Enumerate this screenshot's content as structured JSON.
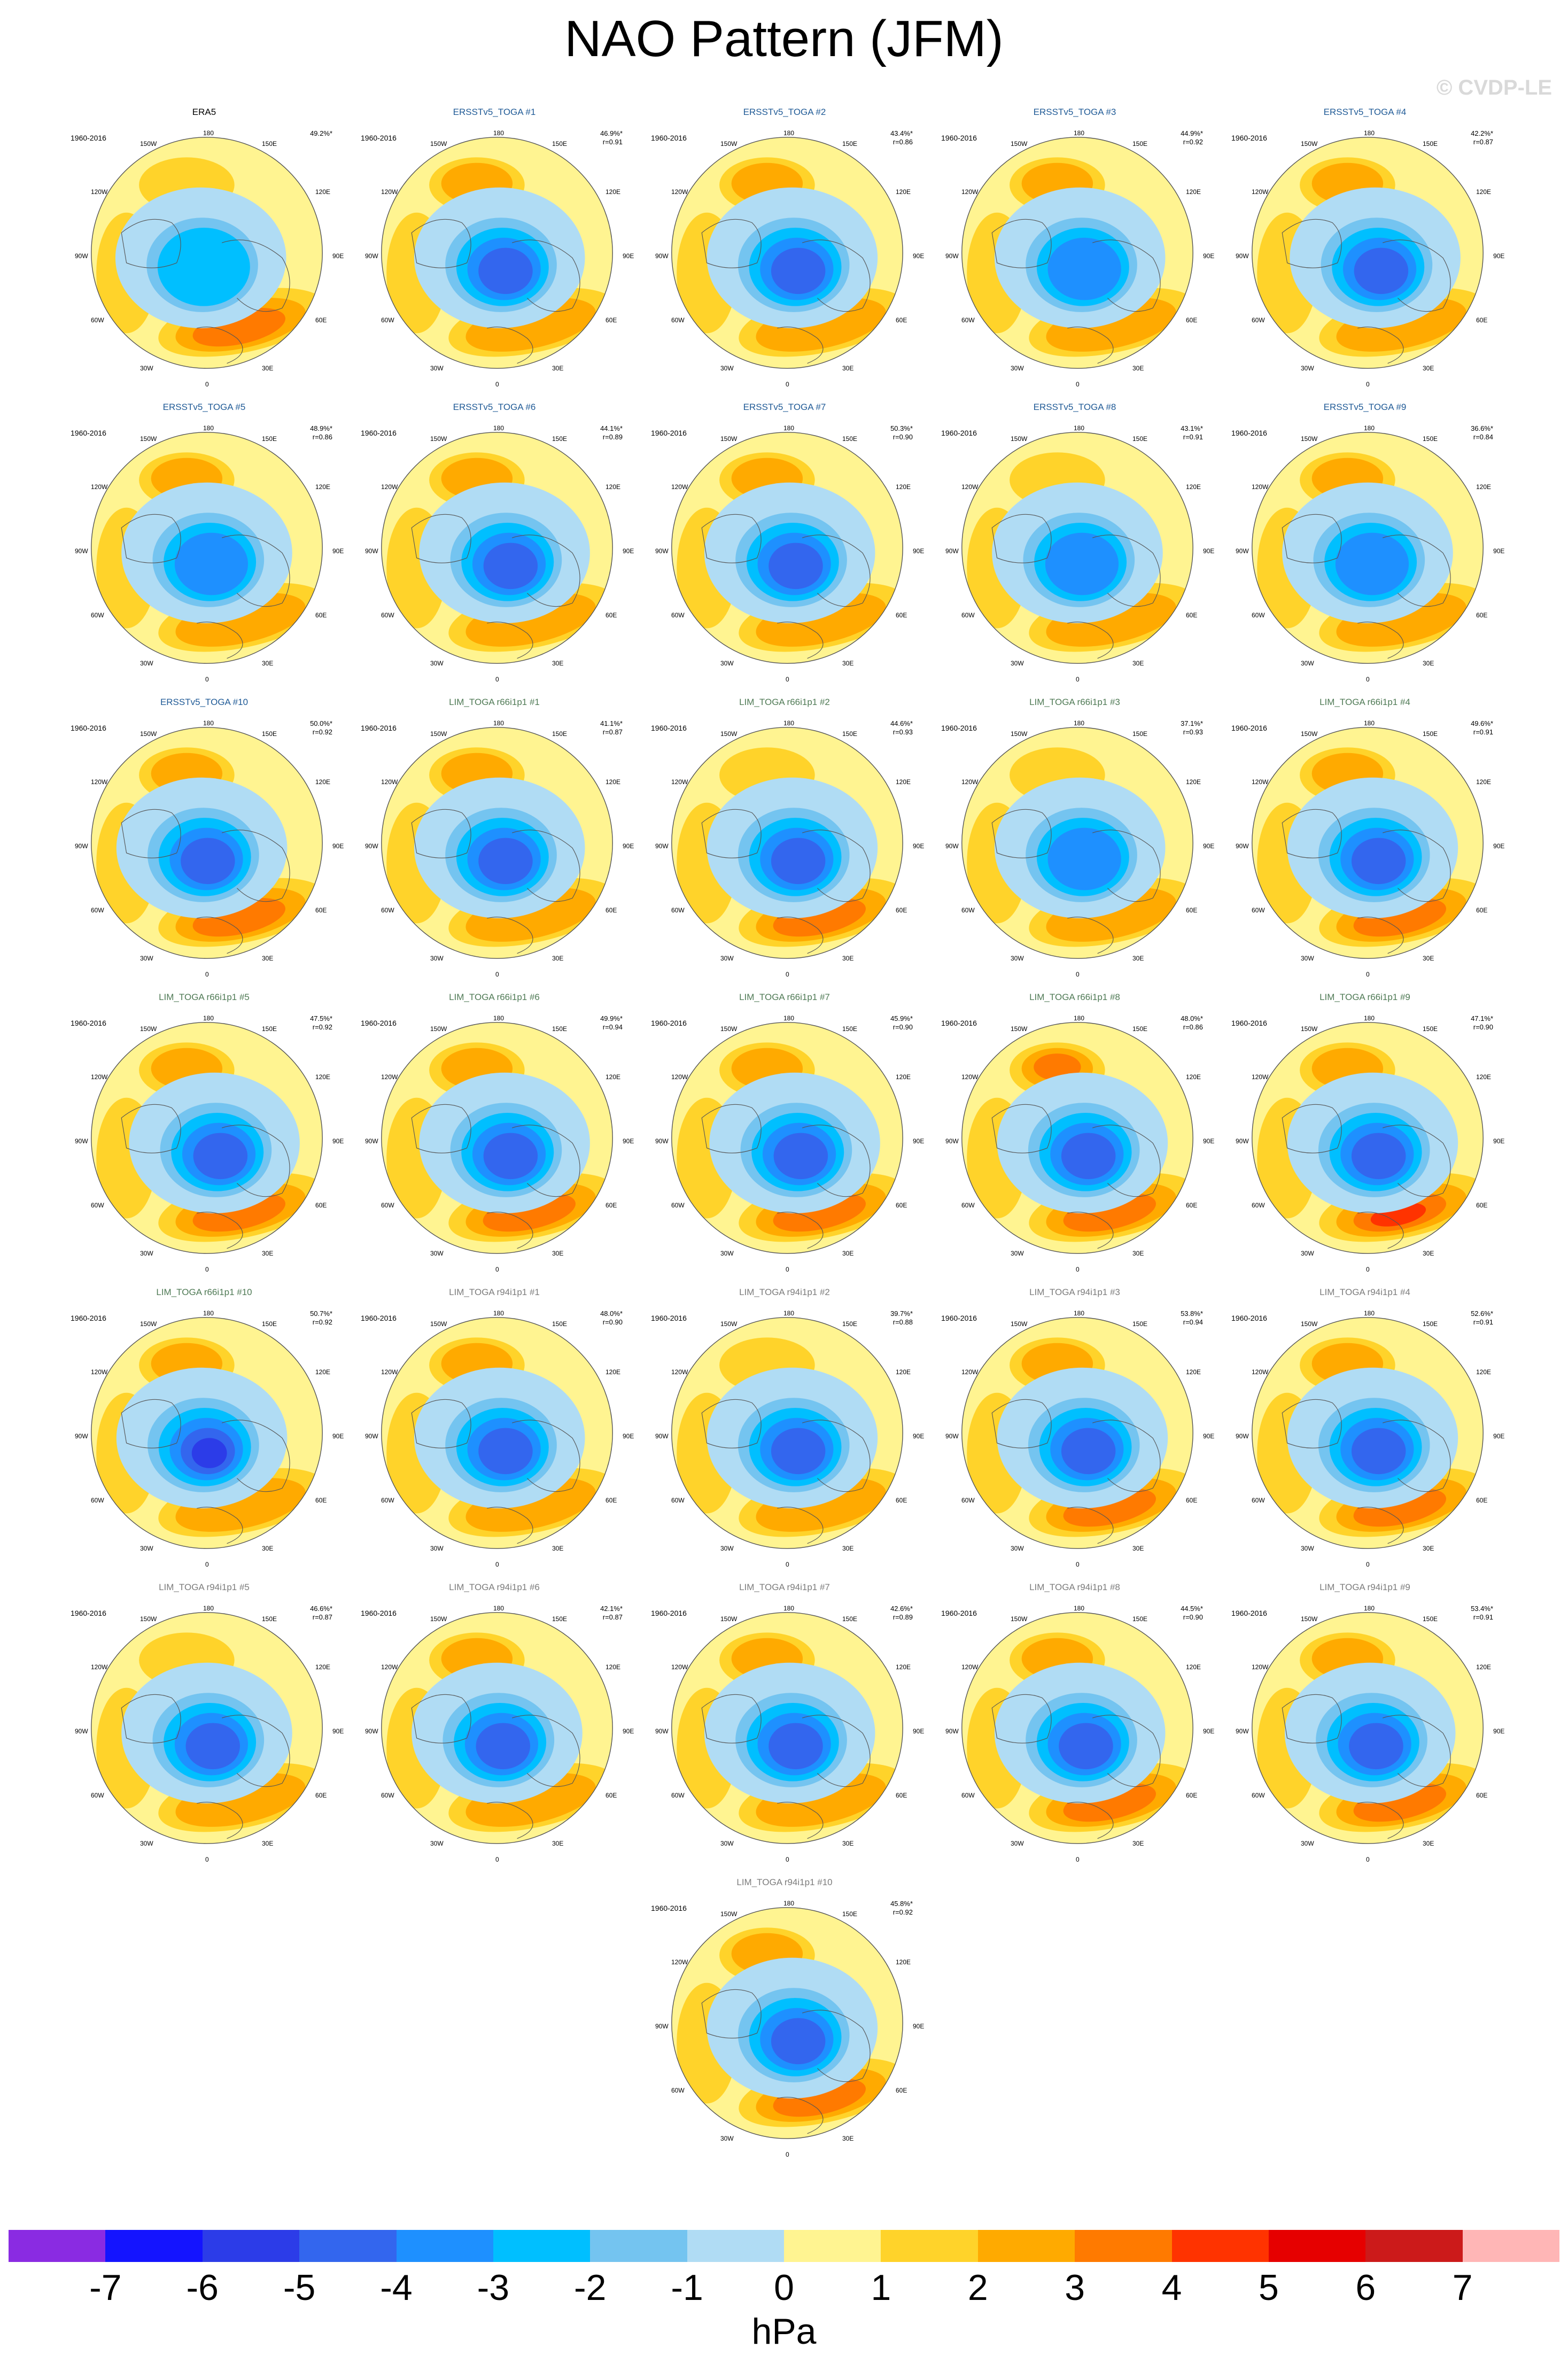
{
  "title": "NAO Pattern (JFM)",
  "watermark": "© CVDP-LE",
  "panel_labels": {
    "period": "1960-2016",
    "lon_180": "180",
    "lon_150W": "150W",
    "lon_150E": "150E",
    "lon_120W": "120W",
    "lon_120E": "120E",
    "lon_90W": "90W",
    "lon_90E": "90E",
    "lon_60W": "60W",
    "lon_60E": "60E",
    "lon_30W": "30W",
    "lon_30E": "30E",
    "lon_0": "0"
  },
  "panels": [
    {
      "title": "ERA5",
      "group": "era",
      "pct": "49.2%*",
      "r": "",
      "ghigh": 0.55,
      "npac": 0.25,
      "natl": 0.7,
      "shift": -12
    },
    {
      "title": "ERSSTv5_TOGA #1",
      "group": "ersst",
      "pct": "46.9%*",
      "r": "r=0.91",
      "ghigh": 0.75,
      "npac": 0.6,
      "natl": 0.6,
      "shift": 5
    },
    {
      "title": "ERSSTv5_TOGA #2",
      "group": "ersst",
      "pct": "43.4%*",
      "r": "r=0.86",
      "ghigh": 0.8,
      "npac": 0.8,
      "natl": 0.6,
      "shift": 10
    },
    {
      "title": "ERSSTv5_TOGA #3",
      "group": "ersst",
      "pct": "44.9%*",
      "r": "r=0.92",
      "ghigh": 0.7,
      "npac": 0.65,
      "natl": 0.6,
      "shift": 5
    },
    {
      "title": "ERSSTv5_TOGA #4",
      "group": "ersst",
      "pct": "42.2%*",
      "r": "r=0.87",
      "ghigh": 0.85,
      "npac": 0.6,
      "natl": 0.6,
      "shift": 15
    },
    {
      "title": "ERSSTv5_TOGA #5",
      "group": "ersst",
      "pct": "48.9%*",
      "r": "r=0.86",
      "ghigh": 0.7,
      "npac": 0.8,
      "natl": 0.55,
      "shift": 0
    },
    {
      "title": "ERSSTv5_TOGA #6",
      "group": "ersst",
      "pct": "44.1%*",
      "r": "r=0.89",
      "ghigh": 0.8,
      "npac": 0.5,
      "natl": 0.6,
      "shift": 15
    },
    {
      "title": "ERSSTv5_TOGA #7",
      "group": "ersst",
      "pct": "50.3%*",
      "r": "r=0.90",
      "ghigh": 0.8,
      "npac": 0.7,
      "natl": 0.6,
      "shift": 5
    },
    {
      "title": "ERSSTv5_TOGA #8",
      "group": "ersst",
      "pct": "43.1%*",
      "r": "r=0.91",
      "ghigh": 0.7,
      "npac": 0.35,
      "natl": 0.6,
      "shift": 0
    },
    {
      "title": "ERSSTv5_TOGA #9",
      "group": "ersst",
      "pct": "36.6%*",
      "r": "r=0.84",
      "ghigh": 0.7,
      "npac": 0.6,
      "natl": 0.6,
      "shift": 0
    },
    {
      "title": "ERSSTv5_TOGA #10",
      "group": "ersst",
      "pct": "50.0%*",
      "r": "r=0.92",
      "ghigh": 0.9,
      "npac": 0.75,
      "natl": 0.7,
      "shift": -10
    },
    {
      "title": "LIM_TOGA r66i1p1 #1",
      "group": "lim66",
      "pct": "41.1%*",
      "r": "r=0.87",
      "ghigh": 0.8,
      "npac": 0.6,
      "natl": 0.6,
      "shift": 5
    },
    {
      "title": "LIM_TOGA r66i1p1 #2",
      "group": "lim66",
      "pct": "44.6%*",
      "r": "r=0.93",
      "ghigh": 0.75,
      "npac": 0.4,
      "natl": 0.7,
      "shift": 10
    },
    {
      "title": "LIM_TOGA r66i1p1 #3",
      "group": "lim66",
      "pct": "37.1%*",
      "r": "r=0.93",
      "ghigh": 0.7,
      "npac": 0.3,
      "natl": 0.6,
      "shift": 5
    },
    {
      "title": "LIM_TOGA r66i1p1 #4",
      "group": "lim66",
      "pct": "49.6%*",
      "r": "r=0.91",
      "ghigh": 0.85,
      "npac": 0.55,
      "natl": 0.7,
      "shift": 10
    },
    {
      "title": "LIM_TOGA r66i1p1 #5",
      "group": "lim66",
      "pct": "47.5%*",
      "r": "r=0.92",
      "ghigh": 0.8,
      "npac": 0.55,
      "natl": 0.65,
      "shift": 15
    },
    {
      "title": "LIM_TOGA r66i1p1 #6",
      "group": "lim66",
      "pct": "49.9%*",
      "r": "r=0.94",
      "ghigh": 0.8,
      "npac": 0.65,
      "natl": 0.8,
      "shift": 15
    },
    {
      "title": "LIM_TOGA r66i1p1 #7",
      "group": "lim66",
      "pct": "45.9%*",
      "r": "r=0.90",
      "ghigh": 0.85,
      "npac": 0.7,
      "natl": 0.7,
      "shift": 15
    },
    {
      "title": "LIM_TOGA r66i1p1 #8",
      "group": "lim66",
      "pct": "48.0%*",
      "r": "r=0.86",
      "ghigh": 0.75,
      "npac": 0.85,
      "natl": 0.65,
      "shift": 10
    },
    {
      "title": "LIM_TOGA r66i1p1 #9",
      "group": "lim66",
      "pct": "47.1%*",
      "r": "r=0.90",
      "ghigh": 0.8,
      "npac": 0.8,
      "natl": 0.9,
      "shift": 10
    },
    {
      "title": "LIM_TOGA r66i1p1 #10",
      "group": "lim66",
      "pct": "50.7%*",
      "r": "r=0.92",
      "ghigh": 0.95,
      "npac": 0.65,
      "natl": 0.6,
      "shift": -10
    },
    {
      "title": "LIM_TOGA r94i1p1 #1",
      "group": "lim94",
      "pct": "48.0%*",
      "r": "r=0.90",
      "ghigh": 0.8,
      "npac": 0.65,
      "natl": 0.6,
      "shift": 5
    },
    {
      "title": "LIM_TOGA r94i1p1 #2",
      "group": "lim94",
      "pct": "39.7%*",
      "r": "r=0.88",
      "ghigh": 0.8,
      "npac": 0.45,
      "natl": 0.55,
      "shift": 10
    },
    {
      "title": "LIM_TOGA r94i1p1 #3",
      "group": "lim94",
      "pct": "53.8%*",
      "r": "r=0.94",
      "ghigh": 0.8,
      "npac": 0.55,
      "natl": 0.7,
      "shift": 10
    },
    {
      "title": "LIM_TOGA r94i1p1 #4",
      "group": "lim94",
      "pct": "52.6%*",
      "r": "r=0.91",
      "ghigh": 0.9,
      "npac": 0.75,
      "natl": 0.75,
      "shift": 10
    },
    {
      "title": "LIM_TOGA r94i1p1 #5",
      "group": "lim94",
      "pct": "46.6%*",
      "r": "r=0.87",
      "ghigh": 0.8,
      "npac": 0.4,
      "natl": 0.6,
      "shift": 0
    },
    {
      "title": "LIM_TOGA r94i1p1 #6",
      "group": "lim94",
      "pct": "42.1%*",
      "r": "r=0.87",
      "ghigh": 0.75,
      "npac": 0.5,
      "natl": 0.6,
      "shift": 0
    },
    {
      "title": "LIM_TOGA r94i1p1 #7",
      "group": "lim94",
      "pct": "42.6%*",
      "r": "r=0.89",
      "ghigh": 0.75,
      "npac": 0.6,
      "natl": 0.6,
      "shift": 5
    },
    {
      "title": "LIM_TOGA r94i1p1 #8",
      "group": "lim94",
      "pct": "44.5%*",
      "r": "r=0.90",
      "ghigh": 0.75,
      "npac": 0.65,
      "natl": 0.65,
      "shift": 5
    },
    {
      "title": "LIM_TOGA r94i1p1 #9",
      "group": "lim94",
      "pct": "53.4%*",
      "r": "r=0.91",
      "ghigh": 0.85,
      "npac": 0.6,
      "natl": 0.65,
      "shift": 5
    },
    {
      "title": "LIM_TOGA r94i1p1 #10",
      "group": "lim94",
      "pct": "45.8%*",
      "r": "r=0.92",
      "ghigh": 0.85,
      "npac": 0.7,
      "natl": 0.8,
      "shift": 10
    }
  ],
  "colorbar": {
    "units": "hPa",
    "ticks": [
      "-7",
      "-6",
      "-5",
      "-4",
      "-3",
      "-2",
      "-1",
      "0",
      "1",
      "2",
      "3",
      "4",
      "5",
      "6",
      "7"
    ],
    "colors": [
      "#8a2be2",
      "#1414ff",
      "#2c3ce8",
      "#3366ee",
      "#1e90ff",
      "#00bfff",
      "#74c4f0",
      "#b0dcf4",
      "#fff491",
      "#ffd32a",
      "#ffaa00",
      "#ff7a00",
      "#ff3300",
      "#e60000",
      "#cc1a1a",
      "#ffb6b6"
    ]
  }
}
